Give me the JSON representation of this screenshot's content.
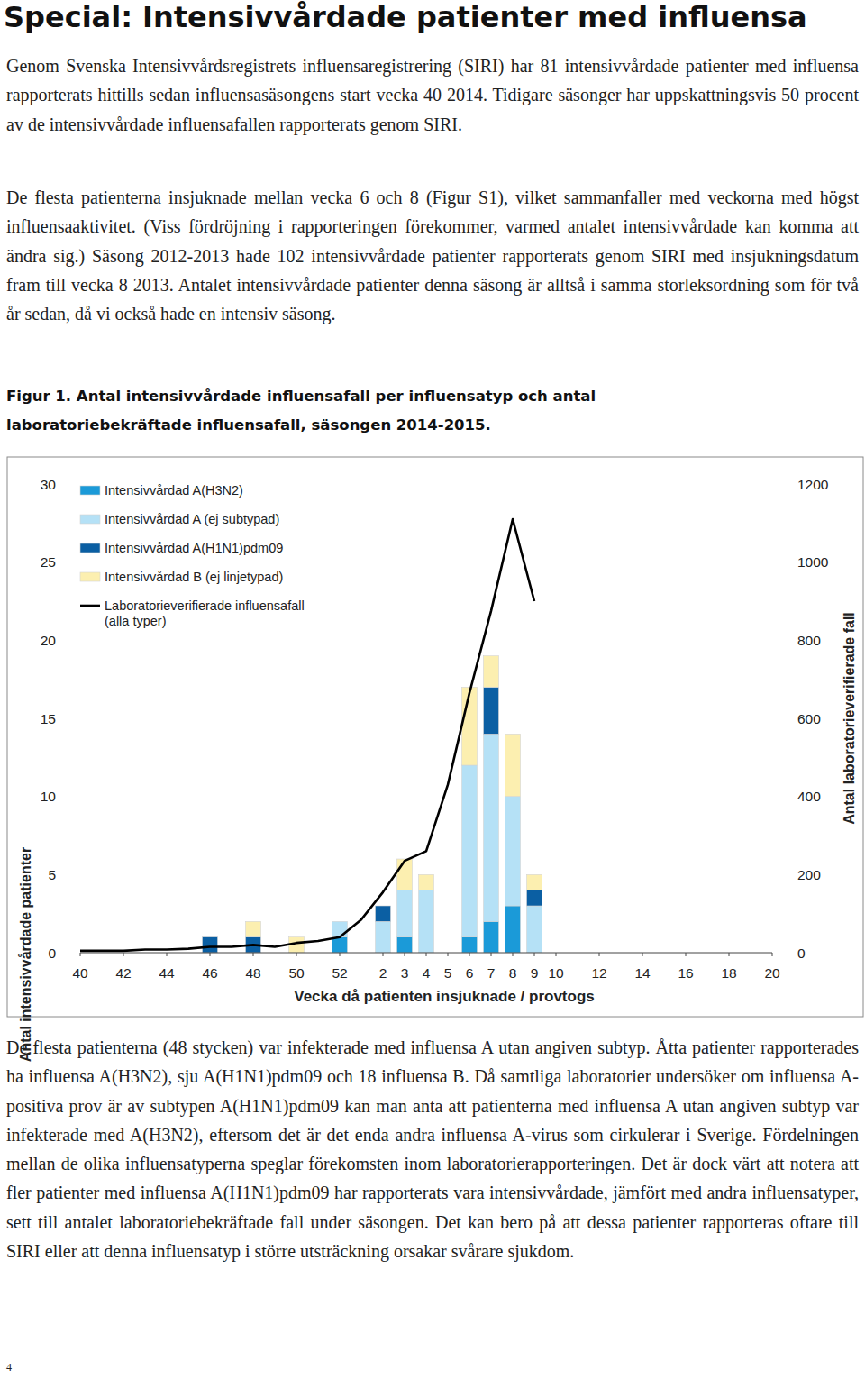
{
  "header": {
    "title": "Special: Intensivvårdade patienter med influensa"
  },
  "paragraphs": [
    "Genom Svenska Intensivvårdsregistrets influensaregistrering (SIRI) har 81 intensivvårdade patienter med influensa rapporterats hittills sedan influensasäsongens start vecka 40 2014. Tidigare säsonger har uppskattningsvis 50 procent av de intensivvårdade influensafallen rapporterats genom SIRI.",
    "De flesta patienterna insjuknade mellan vecka 6 och 8 (Figur S1), vilket sammanfaller med veckorna med högst influensaaktivitet. (Viss fördröjning i rapporteringen förekommer, varmed antalet intensivvårdade kan komma att ändra sig.) Säsong 2012-2013 hade 102 intensivvårdade patienter rapporterats genom SIRI med insjukningsdatum fram till vecka 8 2013. Antalet intensivvårdade patienter denna säsong är alltså i samma storleksordning som för två år sedan, då vi också hade en intensiv säsong."
  ],
  "figure": {
    "caption": "Figur 1. Antal intensivvårdade influensafall per influensatyp och antal laboratoriebekräftade influensafall, säsongen 2014-2015."
  },
  "chart_data": {
    "type": "bar",
    "stacked": true,
    "grid": false,
    "legend": "top-left",
    "xlabel": "Vecka då patienten insjuknade / provtogs",
    "ylabel": "Antal intensivvårdade patienter",
    "y2label": "Antal laboratorieverifierade fall",
    "categories": [
      40,
      null,
      42,
      null,
      44,
      null,
      46,
      null,
      48,
      null,
      50,
      null,
      52,
      null,
      2,
      3,
      4,
      5,
      6,
      7,
      8,
      9,
      10,
      null,
      12,
      null,
      14,
      null,
      16,
      null,
      18,
      null,
      20
    ],
    "ylim": [
      0,
      30
    ],
    "yticks": [
      0,
      5,
      10,
      15,
      20,
      25,
      30
    ],
    "y2lim": [
      0,
      1200
    ],
    "y2ticks": [
      0,
      200,
      400,
      600,
      800,
      1000,
      1200
    ],
    "series": [
      {
        "name": "Intensivvårdad A(H3N2)",
        "type": "bar",
        "color": "#1b9ad8",
        "values": [
          0,
          0,
          0,
          0,
          0,
          0,
          0,
          0,
          0,
          0,
          0,
          0,
          1,
          0,
          0,
          1,
          0,
          0,
          1,
          2,
          3,
          0,
          0,
          0,
          0,
          0,
          0,
          0,
          0,
          0,
          0,
          0,
          0
        ]
      },
      {
        "name": "Intensivvårdad A (ej subtypad)",
        "type": "bar",
        "color": "#b5e1f6",
        "values": [
          0,
          0,
          0,
          0,
          0,
          0,
          0,
          0,
          0,
          0,
          0,
          0,
          1,
          0,
          2,
          3,
          4,
          0,
          11,
          12,
          7,
          3,
          0,
          0,
          0,
          0,
          0,
          0,
          0,
          0,
          0,
          0,
          0
        ]
      },
      {
        "name": "Intensivvårdad A(H1N1)pdm09",
        "type": "bar",
        "color": "#0b5fa3",
        "values": [
          0,
          0,
          0,
          0,
          0,
          0,
          1,
          0,
          1,
          0,
          0,
          0,
          0,
          0,
          1,
          0,
          0,
          0,
          0,
          3,
          0,
          1,
          0,
          0,
          0,
          0,
          0,
          0,
          0,
          0,
          0,
          0,
          0
        ]
      },
      {
        "name": "Intensivvårdad B (ej linjetypad)",
        "type": "bar",
        "color": "#fcefb0",
        "values": [
          0,
          0,
          0,
          0,
          0,
          0,
          0,
          0,
          1,
          0,
          1,
          0,
          0,
          0,
          0,
          2,
          1,
          0,
          5,
          2,
          4,
          1,
          0,
          0,
          0,
          0,
          0,
          0,
          0,
          0,
          0,
          0,
          0
        ]
      },
      {
        "name": "Laboratorieverifierade influensafall\n(alla typer)",
        "type": "line",
        "axis": "y2",
        "color": "#000000",
        "values": [
          5,
          5,
          5,
          8,
          8,
          10,
          15,
          15,
          20,
          15,
          25,
          30,
          40,
          85,
          155,
          235,
          260,
          430,
          665,
          875,
          1110,
          900,
          null,
          null,
          null,
          null,
          null,
          null,
          null,
          null,
          null,
          null,
          null
        ]
      }
    ]
  },
  "paragraphs_after": [
    "De flesta patienterna (48 stycken) var infekterade med influensa A utan angiven subtyp. Åtta patienter rapporterades ha influensa A(H3N2), sju A(H1N1)pdm09 och 18 influensa B. Då samtliga laboratorier undersöker om influensa A-positiva prov är av subtypen A(H1N1)pdm09 kan man anta att patienterna med influensa A utan angiven subtyp var infekterade med A(H3N2), eftersom det är det enda andra influensa A-virus som cirkulerar i Sverige. Fördelningen mellan de olika influensatyperna speglar förekomsten inom laboratorierapporteringen. Det är dock värt att notera att fler patienter med influensa A(H1N1)pdm09 har rapporterats vara intensivvårdade, jämfört med andra influensatyper, sett till antalet laboratoriebekräftade fall under säsongen. Det kan bero på att dessa patienter rapporteras oftare till SIRI eller att denna influensatyp i större utsträckning orsakar svårare sjukdom."
  ],
  "page_number": "4"
}
